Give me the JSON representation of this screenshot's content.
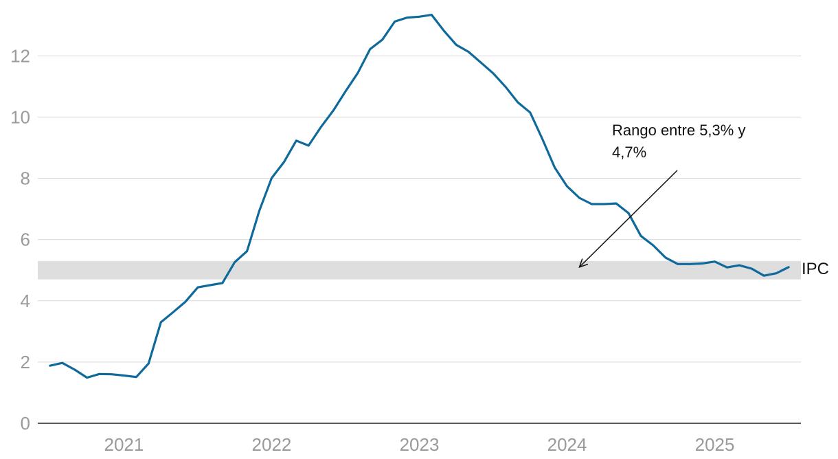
{
  "chart_data": {
    "type": "line",
    "x": [
      "2020-08",
      "2020-09",
      "2020-10",
      "2020-11",
      "2020-12",
      "2021-01",
      "2021-02",
      "2021-03",
      "2021-04",
      "2021-05",
      "2021-06",
      "2021-07",
      "2021-08",
      "2021-09",
      "2021-10",
      "2021-11",
      "2021-12",
      "2022-01",
      "2022-02",
      "2022-03",
      "2022-04",
      "2022-05",
      "2022-06",
      "2022-07",
      "2022-08",
      "2022-09",
      "2022-10",
      "2022-11",
      "2022-12",
      "2023-01",
      "2023-02",
      "2023-03",
      "2023-04",
      "2023-05",
      "2023-06",
      "2023-07",
      "2023-08",
      "2023-09",
      "2023-10",
      "2023-11",
      "2023-12",
      "2024-01",
      "2024-02",
      "2024-03",
      "2024-04",
      "2024-05",
      "2024-06",
      "2024-07",
      "2024-08",
      "2024-09",
      "2024-10",
      "2024-11",
      "2024-12",
      "2025-01",
      "2025-02",
      "2025-03",
      "2025-04",
      "2025-05",
      "2025-06",
      "2025-07",
      "2025-08"
    ],
    "series": [
      {
        "name": "IPC",
        "color": "#0f6a9b",
        "values": [
          1.88,
          1.97,
          1.75,
          1.49,
          1.61,
          1.6,
          1.56,
          1.51,
          1.95,
          3.3,
          3.63,
          3.97,
          4.44,
          4.51,
          4.58,
          5.26,
          5.62,
          6.94,
          8.01,
          8.53,
          9.23,
          9.07,
          9.67,
          10.21,
          10.84,
          11.44,
          12.22,
          12.53,
          13.12,
          13.25,
          13.28,
          13.34,
          12.82,
          12.36,
          12.13,
          11.78,
          11.43,
          10.99,
          10.48,
          10.15,
          9.28,
          8.35,
          7.74,
          7.36,
          7.16,
          7.16,
          7.18,
          6.86,
          6.12,
          5.81,
          5.41,
          5.2,
          5.2,
          5.22,
          5.28,
          5.09,
          5.16,
          5.05,
          4.82,
          4.9,
          5.1
        ]
      }
    ],
    "band": {
      "low": 4.7,
      "high": 5.3,
      "color": "#dedede"
    },
    "annotation": {
      "text_lines": [
        "Rango entre 5,3% y",
        "4,7%"
      ],
      "target_x": "2024-03",
      "target_y": 5.1
    },
    "xticks": [
      "2021",
      "2022",
      "2023",
      "2024",
      "2025"
    ],
    "xtick_positions": [
      "2021-02",
      "2022-02",
      "2023-02",
      "2024-02",
      "2025-02"
    ],
    "yticks": [
      "0",
      "2",
      "4",
      "6",
      "8",
      "10",
      "12"
    ],
    "ylim": [
      0,
      13.6
    ],
    "xlim": [
      "2020-07",
      "2025-09"
    ],
    "grid": true,
    "title": "",
    "xlabel": "",
    "ylabel": ""
  }
}
